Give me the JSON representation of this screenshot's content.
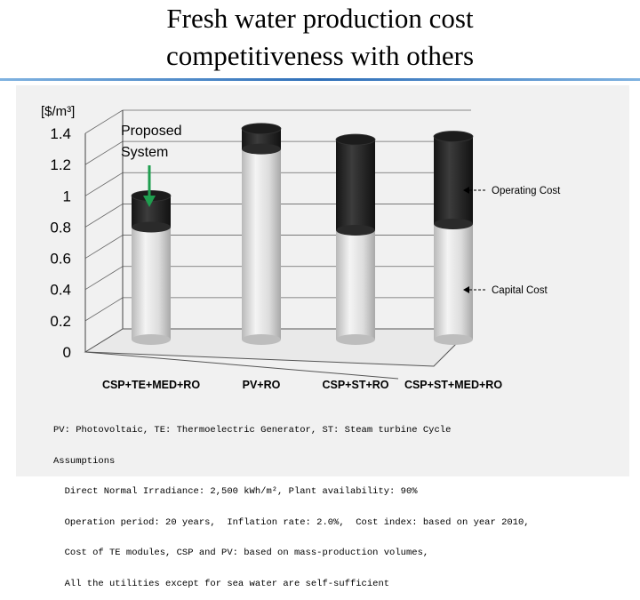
{
  "title_line1": "Fresh water production cost",
  "title_line2": "competitiveness with others",
  "chart_data": {
    "type": "bar",
    "stacked": true,
    "ylabel": "[$/m³]",
    "ylim": [
      0,
      1.4
    ],
    "yticks": [
      "1.4",
      "1.2",
      "1",
      "0.8",
      "0.6",
      "0.4",
      "0.2",
      "0"
    ],
    "grid": true,
    "categories": [
      "CSP+TE+MED+RO",
      "PV+RO",
      "CSP+ST+RO",
      "CSP+ST+MED+RO"
    ],
    "series": [
      {
        "name": "Capital Cost",
        "values": [
          0.72,
          1.22,
          0.7,
          0.74
        ],
        "color": "#e2e2e2"
      },
      {
        "name": "Operating Cost",
        "values": [
          0.2,
          0.13,
          0.58,
          0.56
        ],
        "color": "#232323"
      }
    ],
    "annotation": {
      "line1": "Proposed",
      "line2": "System",
      "arrow_color": "#1f9e4f"
    }
  },
  "notes": [
    "PV: Photovoltaic, TE: Thermoelectric Generator, ST: Steam turbine Cycle",
    "Assumptions",
    "  Direct Normal Irradiance: 2,500 kWh/m², Plant availability: 90%",
    "  Operation period: 20 years,  Inflation rate: 2.0%,  Cost index: based on year 2010,",
    "  Cost of TE modules, CSP and PV: based on mass-production volumes,",
    "  All the utilities except for sea water are self-sufficient"
  ]
}
